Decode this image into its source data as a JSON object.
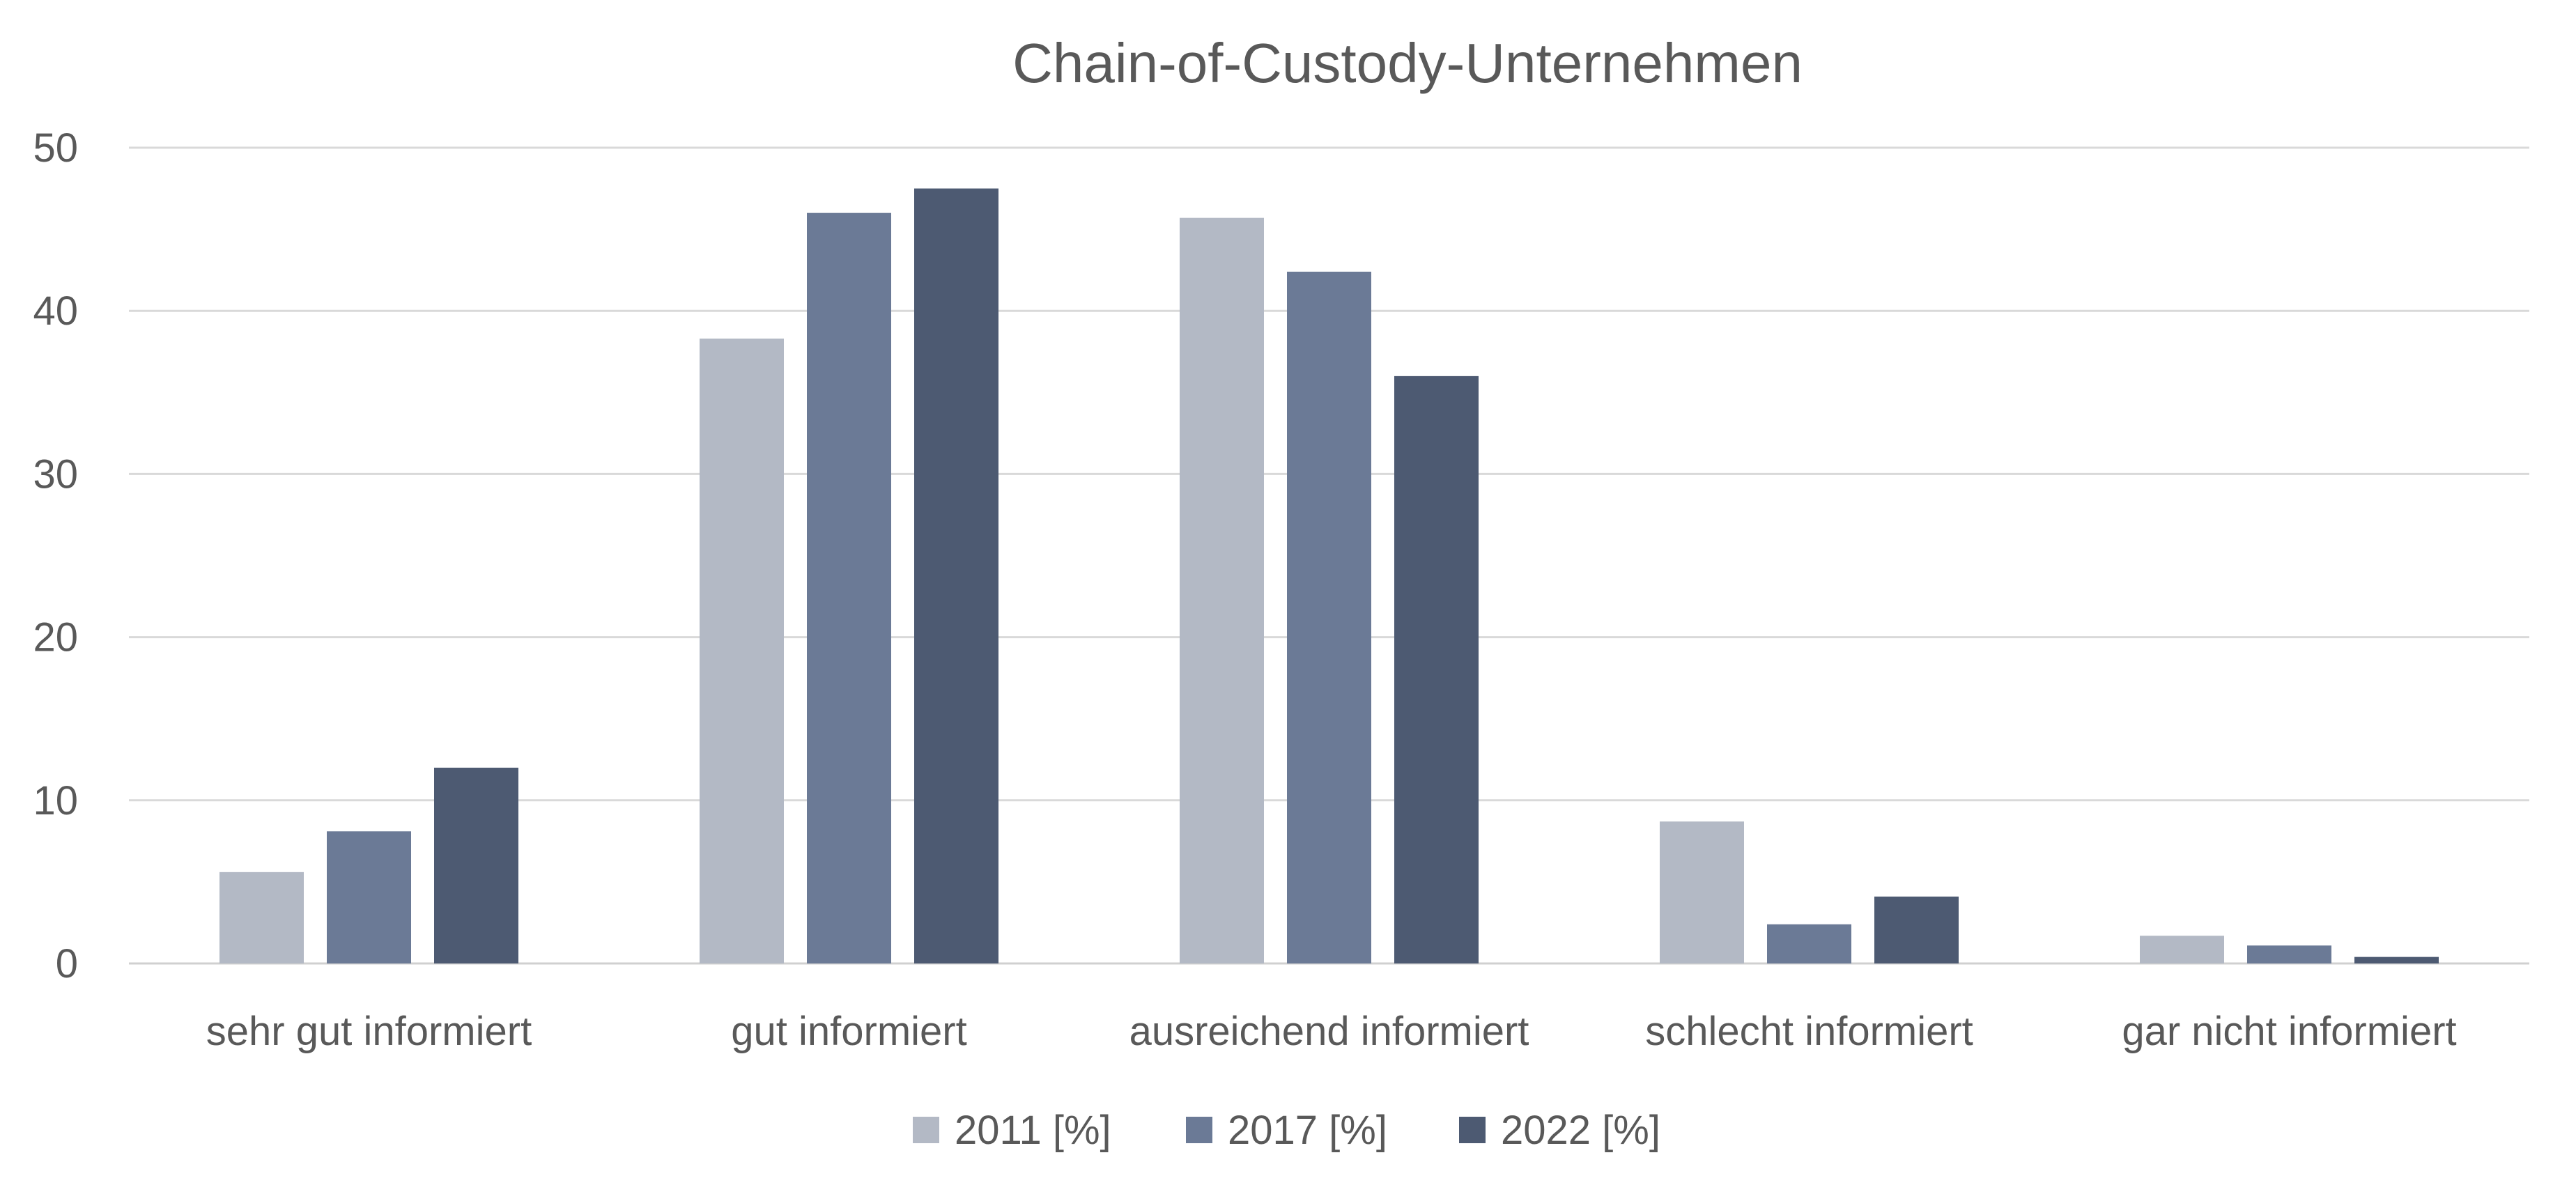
{
  "chart_data": {
    "type": "bar",
    "title": "Chain-of-Custody-Unternehmen",
    "xlabel": "",
    "ylabel": "",
    "categories": [
      "sehr gut informiert",
      "gut informiert",
      "ausreichend informiert",
      "schlecht informiert",
      "gar nicht informiert"
    ],
    "series": [
      {
        "name": "2011 [%]",
        "color": "#b3b9c5",
        "values": [
          5.6,
          38.3,
          45.7,
          8.7,
          1.7
        ]
      },
      {
        "name": "2017 [%]",
        "color": "#6b7a96",
        "values": [
          8.1,
          46.0,
          42.4,
          2.4,
          1.1
        ]
      },
      {
        "name": "2022 [%]",
        "color": "#4d5a72",
        "values": [
          12.0,
          47.5,
          36.0,
          4.1,
          0.4
        ]
      }
    ],
    "ylim": [
      0,
      50
    ],
    "yticks": [
      "0",
      "10",
      "20",
      "30",
      "40",
      "50"
    ],
    "grid": true,
    "legend_position": "bottom-center"
  }
}
